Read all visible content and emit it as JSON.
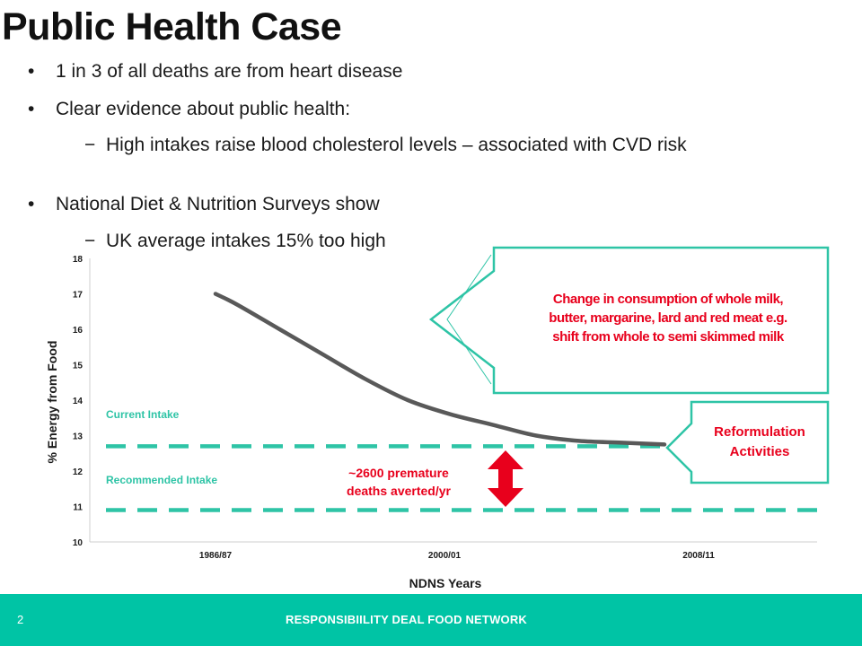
{
  "slide": {
    "title": "Public Health Case",
    "bullets": [
      {
        "level": 1,
        "text": "1 in 3 of all deaths are from heart disease"
      },
      {
        "level": 1,
        "text": "Clear evidence about public health:"
      },
      {
        "level": 2,
        "text": "High intakes raise blood cholesterol levels – associated with CVD risk"
      },
      {
        "level": 1,
        "text": "National Diet & Nutrition Surveys show"
      },
      {
        "level": 2,
        "text": "UK average intakes 15% too high"
      }
    ]
  },
  "chart_data": {
    "type": "line",
    "xlabel": "NDNS Years",
    "ylabel": "% Energy from Food",
    "ylim": [
      10,
      18
    ],
    "yticks": [
      "10",
      "11",
      "12",
      "13",
      "14",
      "15",
      "16",
      "17",
      "18"
    ],
    "categories": [
      "1986/87",
      "2000/01",
      "2008/11"
    ],
    "x": [
      1987,
      1988,
      1990,
      1992,
      1994,
      1996,
      1998,
      2000,
      2002,
      2004,
      2006,
      2008
    ],
    "values": [
      17.0,
      16.7,
      16.0,
      15.3,
      14.6,
      14.0,
      13.6,
      13.3,
      13.0,
      12.85,
      12.8,
      12.75
    ],
    "line_color": "#595959",
    "reference_lines": [
      {
        "label": "Current Intake",
        "value": 12.7,
        "color": "#2ec4a6"
      },
      {
        "label": "Recommended Intake",
        "value": 10.9,
        "color": "#2ec4a6"
      }
    ],
    "gap_annotation": {
      "text_line1": "~2600 premature",
      "text_line2": "deaths averted/yr",
      "color": "#e8001c"
    },
    "callouts": {
      "consumption": {
        "line1": "Change in consumption of whole milk,",
        "line2": "butter, margarine, lard and red meat e.g.",
        "line3": "shift from whole to semi skimmed milk"
      },
      "reformulation": {
        "line1": "Reformulation",
        "line2": "Activities"
      }
    },
    "accent": "#2ec4a6",
    "callout_text_color": "#e8001c"
  },
  "footer": {
    "page_number": "2",
    "text": "RESPONSIBIILITY DEAL FOOD NETWORK",
    "color": "#00c4a5"
  }
}
